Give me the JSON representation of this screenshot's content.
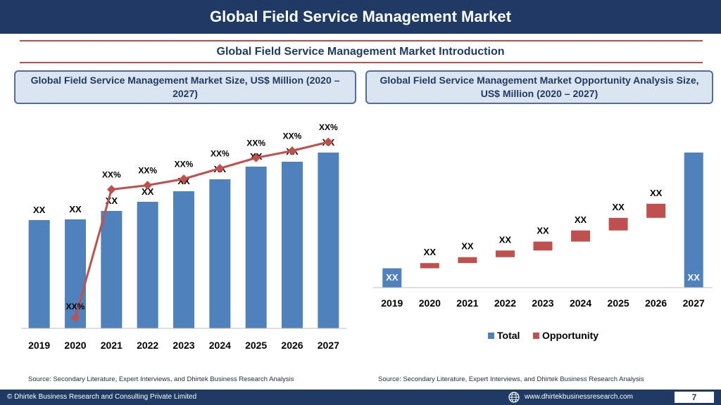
{
  "header": {
    "title": "Global Field Service Management Market",
    "subtitle": "Global Field Service Management Market  Introduction"
  },
  "left_panel": {
    "heading": "Global Field Service Management Market  Size, US$ Million (2020 – 2027)",
    "source": "Source: Secondary Literature, Expert Interviews, and Dhirtek Business Research Analysis"
  },
  "right_panel": {
    "heading": "Global Field Service Management Market  Opportunity Analysis Size, US$ Million (2020 – 2027)",
    "source": "Source: Secondary Literature, Expert Interviews, and Dhirtek Business Research Analysis"
  },
  "footer": {
    "copyright": "© Dhirtek Business Research and Consulting Private Limited",
    "website": "www.dhirtekbusinessresearch.com",
    "page": "7",
    "globe_icon": "globe-icon"
  },
  "colors": {
    "bar": "#4f81bd",
    "line": "#c0504d",
    "opportunity": "#c0504d",
    "header": "#1f3b63"
  },
  "chart_data": [
    {
      "type": "bar",
      "categories": [
        "2019",
        "2020",
        "2021",
        "2022",
        "2023",
        "2024",
        "2025",
        "2026",
        "2027"
      ],
      "series": [
        {
          "values": [
            154,
            155,
            167,
            180,
            195,
            212,
            230,
            237,
            250
          ],
          "labels": [
            "XX",
            "XX",
            "XX",
            "XX",
            "XX",
            "XX",
            "XX",
            "XX",
            "XX"
          ]
        }
      ],
      "line_series": {
        "values": [
          null,
          3.0,
          39.5,
          40.7,
          42.5,
          45.5,
          48.5,
          50.5,
          53.0
        ],
        "labels": [
          "",
          "XX%",
          "XX%",
          "XX%",
          "XX%",
          "XX%",
          "XX%",
          "XX%",
          "XX%"
        ]
      },
      "ylim": [
        0,
        300
      ],
      "y2lim": [
        0,
        60
      ],
      "grid": false
    },
    {
      "type": "bar",
      "categories": [
        "2019",
        "2020",
        "2021",
        "2022",
        "2023",
        "2024",
        "2025",
        "2026",
        "2027"
      ],
      "series": [
        {
          "name": "Total",
          "values": [
            26,
            null,
            null,
            null,
            null,
            null,
            null,
            null,
            182
          ],
          "labels": [
            "XX",
            "",
            "",
            "",
            "",
            "",
            "",
            "",
            "XX"
          ]
        },
        {
          "name": "Opportunity",
          "values": [
            null,
            [
              26,
              33
            ],
            [
              33,
              41
            ],
            [
              41,
              50
            ],
            [
              50,
              62
            ],
            [
              62,
              77
            ],
            [
              77,
              94
            ],
            [
              94,
              113
            ],
            null
          ],
          "labels": [
            "",
            "XX",
            "XX",
            "XX",
            "XX",
            "XX",
            "XX",
            "XX",
            ""
          ]
        }
      ],
      "legend": "bottom",
      "ylim": [
        0,
        200
      ],
      "grid": false
    }
  ]
}
